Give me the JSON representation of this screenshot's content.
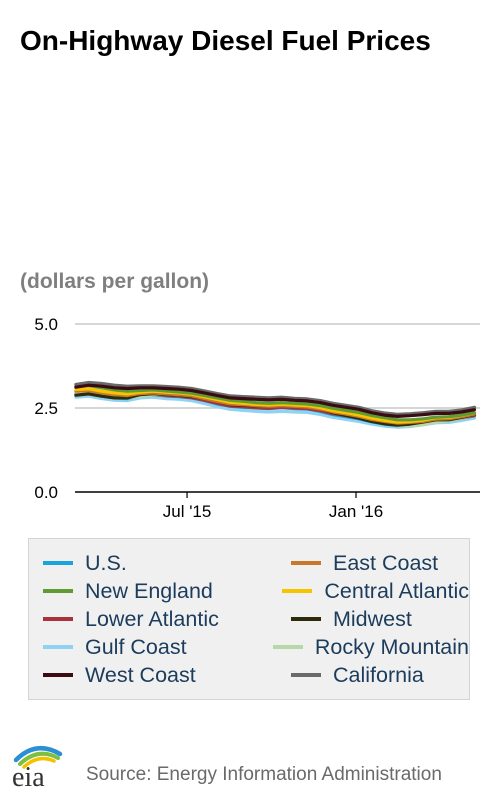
{
  "header": {
    "title": "On-Highway Diesel Fuel Prices",
    "units": "(dollars per gallon)"
  },
  "footer": {
    "logo_text": "eia",
    "source": "Source: Energy Information Administration"
  },
  "colors": {
    "U.S.": "#1aa3dc",
    "East Coast": "#c8772b",
    "New England": "#5f9b32",
    "Central Atlantic": "#f5c500",
    "Lower Atlantic": "#a8333c",
    "Midwest": "#2f2a0a",
    "Gulf Coast": "#8fd3f2",
    "Rocky Mountain": "#b9d8a8",
    "West Coast": "#3b0b14",
    "California": "#6a6a6a"
  },
  "chart_data": {
    "type": "line",
    "title": "On-Highway Diesel Fuel Prices",
    "ylabel": "(dollars per gallon)",
    "xlabel": "",
    "ylim": [
      0,
      5
    ],
    "yticks": [
      "0.0",
      "2.5",
      "5.0"
    ],
    "xticks": [
      {
        "label": "Jul '15",
        "date": "2015-07-01"
      },
      {
        "label": "Jan '16",
        "date": "2016-01-01"
      }
    ],
    "grid": "horizontal",
    "legend_position": "bottom",
    "x": [
      "2015-03-02",
      "2015-03-16",
      "2015-03-30",
      "2015-04-13",
      "2015-04-27",
      "2015-05-11",
      "2015-05-25",
      "2015-06-08",
      "2015-06-22",
      "2015-07-06",
      "2015-07-20",
      "2015-08-03",
      "2015-08-17",
      "2015-08-31",
      "2015-09-14",
      "2015-09-28",
      "2015-10-12",
      "2015-10-26",
      "2015-11-09",
      "2015-11-23",
      "2015-12-07",
      "2015-12-21",
      "2016-01-04",
      "2016-01-18",
      "2016-02-01",
      "2016-02-15",
      "2016-02-29",
      "2016-03-14",
      "2016-03-28",
      "2016-04-11",
      "2016-04-25",
      "2016-05-09"
    ],
    "series": [
      {
        "name": "U.S.",
        "values": [
          2.9,
          2.93,
          2.85,
          2.8,
          2.78,
          2.88,
          2.9,
          2.86,
          2.84,
          2.8,
          2.72,
          2.62,
          2.55,
          2.52,
          2.5,
          2.48,
          2.51,
          2.48,
          2.47,
          2.4,
          2.3,
          2.24,
          2.18,
          2.09,
          2.02,
          1.98,
          2.0,
          2.05,
          2.12,
          2.13,
          2.2,
          2.28
        ]
      },
      {
        "name": "East Coast",
        "values": [
          3.0,
          3.02,
          2.95,
          2.9,
          2.87,
          2.93,
          2.95,
          2.92,
          2.9,
          2.86,
          2.78,
          2.7,
          2.62,
          2.6,
          2.57,
          2.55,
          2.57,
          2.55,
          2.53,
          2.47,
          2.38,
          2.32,
          2.25,
          2.16,
          2.1,
          2.05,
          2.07,
          2.1,
          2.17,
          2.18,
          2.24,
          2.32
        ]
      },
      {
        "name": "New England",
        "values": [
          3.15,
          3.17,
          3.1,
          3.04,
          3.0,
          3.02,
          3.04,
          3.01,
          2.98,
          2.94,
          2.87,
          2.8,
          2.73,
          2.7,
          2.66,
          2.64,
          2.66,
          2.64,
          2.62,
          2.57,
          2.49,
          2.43,
          2.37,
          2.28,
          2.21,
          2.15,
          2.15,
          2.18,
          2.23,
          2.24,
          2.29,
          2.36
        ]
      },
      {
        "name": "Central Atlantic",
        "values": [
          3.05,
          3.07,
          3.0,
          2.95,
          2.92,
          2.97,
          3.0,
          2.97,
          2.95,
          2.91,
          2.83,
          2.75,
          2.67,
          2.64,
          2.61,
          2.59,
          2.61,
          2.59,
          2.57,
          2.51,
          2.42,
          2.36,
          2.29,
          2.2,
          2.13,
          2.08,
          2.1,
          2.14,
          2.21,
          2.22,
          2.28,
          2.36
        ]
      },
      {
        "name": "Lower Atlantic",
        "values": [
          2.93,
          2.96,
          2.88,
          2.83,
          2.8,
          2.88,
          2.9,
          2.87,
          2.85,
          2.81,
          2.73,
          2.64,
          2.56,
          2.54,
          2.51,
          2.49,
          2.52,
          2.5,
          2.48,
          2.42,
          2.33,
          2.27,
          2.2,
          2.11,
          2.05,
          2.01,
          2.03,
          2.06,
          2.13,
          2.14,
          2.2,
          2.27
        ]
      },
      {
        "name": "Midwest",
        "values": [
          2.88,
          2.92,
          2.85,
          2.8,
          2.8,
          2.9,
          2.93,
          2.9,
          2.88,
          2.84,
          2.78,
          2.7,
          2.6,
          2.58,
          2.56,
          2.55,
          2.6,
          2.57,
          2.55,
          2.48,
          2.36,
          2.28,
          2.2,
          2.1,
          2.03,
          1.99,
          2.02,
          2.08,
          2.15,
          2.15,
          2.22,
          2.3
        ]
      },
      {
        "name": "Gulf Coast",
        "values": [
          2.82,
          2.85,
          2.78,
          2.73,
          2.72,
          2.8,
          2.82,
          2.78,
          2.76,
          2.72,
          2.63,
          2.54,
          2.46,
          2.43,
          2.4,
          2.38,
          2.4,
          2.38,
          2.37,
          2.31,
          2.22,
          2.16,
          2.1,
          2.02,
          1.96,
          1.93,
          1.95,
          2.0,
          2.06,
          2.07,
          2.13,
          2.2
        ]
      },
      {
        "name": "Rocky Mountain",
        "values": [
          2.95,
          2.95,
          2.9,
          2.85,
          2.8,
          2.85,
          2.9,
          2.9,
          2.88,
          2.86,
          2.82,
          2.75,
          2.68,
          2.64,
          2.6,
          2.58,
          2.58,
          2.56,
          2.55,
          2.5,
          2.4,
          2.32,
          2.25,
          2.15,
          2.05,
          1.98,
          1.97,
          2.0,
          2.08,
          2.12,
          2.2,
          2.3
        ]
      },
      {
        "name": "West Coast",
        "values": [
          3.12,
          3.18,
          3.15,
          3.1,
          3.08,
          3.1,
          3.1,
          3.08,
          3.06,
          3.02,
          2.95,
          2.87,
          2.8,
          2.78,
          2.76,
          2.74,
          2.76,
          2.73,
          2.71,
          2.66,
          2.58,
          2.52,
          2.46,
          2.36,
          2.29,
          2.25,
          2.27,
          2.3,
          2.34,
          2.34,
          2.38,
          2.45
        ]
      },
      {
        "name": "California",
        "values": [
          3.2,
          3.26,
          3.23,
          3.18,
          3.15,
          3.16,
          3.16,
          3.14,
          3.12,
          3.08,
          3.01,
          2.93,
          2.86,
          2.84,
          2.82,
          2.8,
          2.82,
          2.79,
          2.77,
          2.72,
          2.64,
          2.58,
          2.52,
          2.42,
          2.35,
          2.31,
          2.33,
          2.36,
          2.4,
          2.4,
          2.44,
          2.52
        ]
      }
    ]
  }
}
